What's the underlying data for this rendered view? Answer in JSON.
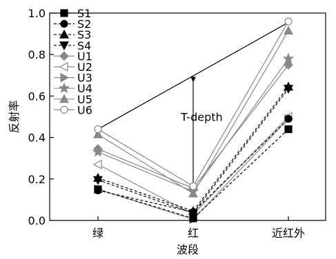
{
  "chart_data": {
    "type": "line",
    "xlabel": "波段",
    "ylabel": "反射率",
    "categories": [
      "绿",
      "红",
      "近红外"
    ],
    "ylim": [
      0,
      1.0
    ],
    "yticks": [
      0.0,
      0.2,
      0.4,
      0.6,
      0.8,
      1.0
    ],
    "ytick_labels": [
      "0.0",
      "0.2",
      "0.4",
      "0.6",
      "0.8",
      "1.0"
    ],
    "legend_position": "top-left",
    "grid": false,
    "series": [
      {
        "name": "S1",
        "values": [
          0.15,
          0.01,
          0.44
        ],
        "color": "#000000",
        "marker": "square",
        "dash": true
      },
      {
        "name": "S2",
        "values": [
          0.145,
          0.04,
          0.49
        ],
        "color": "#000000",
        "marker": "circle",
        "dash": true
      },
      {
        "name": "S3",
        "values": [
          0.205,
          0.045,
          0.645
        ],
        "color": "#000000",
        "marker": "triangle-up",
        "dash": true
      },
      {
        "name": "S4",
        "values": [
          0.195,
          0.035,
          0.635
        ],
        "color": "#000000",
        "marker": "triangle-down",
        "dash": true
      },
      {
        "name": "U1",
        "values": [
          0.345,
          0.155,
          0.75
        ],
        "color": "#888888",
        "marker": "diamond",
        "dash": false
      },
      {
        "name": "U2",
        "values": [
          0.27,
          0.03,
          0.5
        ],
        "color": "#888888",
        "marker": "triangle-left-open",
        "dash": false
      },
      {
        "name": "U3",
        "values": [
          0.15,
          0.005,
          0.49
        ],
        "color": "#888888",
        "marker": "triangle-right",
        "dash": false
      },
      {
        "name": "U4",
        "values": [
          0.33,
          0.14,
          0.78
        ],
        "color": "#888888",
        "marker": "star",
        "dash": false
      },
      {
        "name": "U5",
        "values": [
          0.415,
          0.13,
          0.915
        ],
        "color": "#888888",
        "marker": "triangle-up",
        "dash": false
      },
      {
        "name": "U6",
        "values": [
          0.44,
          0.165,
          0.96
        ],
        "color": "#888888",
        "marker": "circle-open",
        "dash": false
      }
    ],
    "annotations": [
      {
        "type": "line",
        "from": [
          "绿",
          0.44
        ],
        "to": [
          "近红外",
          0.955
        ],
        "color": "#000000"
      },
      {
        "type": "double-arrow",
        "category": "红",
        "from": 0.68,
        "to": 0.13,
        "color": "#000000"
      },
      {
        "type": "text",
        "text": "T-depth",
        "category": "红",
        "value": 0.5
      }
    ]
  }
}
